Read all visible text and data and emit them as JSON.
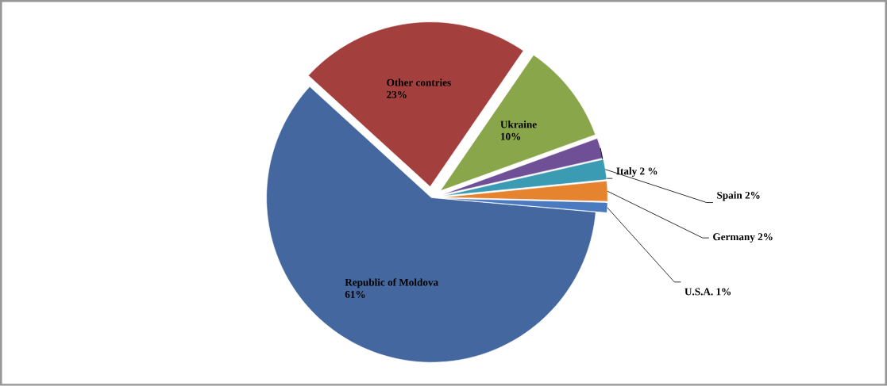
{
  "chart_data": {
    "type": "pie",
    "categories": [
      "Republic of Moldova",
      "Other contries",
      "Ukraine",
      "Italy",
      "Spain",
      "Germany",
      "U.S.A."
    ],
    "values": [
      61,
      23,
      10,
      2,
      2,
      2,
      1
    ],
    "value_labels": [
      "61%",
      "23%",
      "10%",
      "2 %",
      "2%",
      "2%",
      "1%"
    ],
    "colors": [
      "#43679e",
      "#a3403d",
      "#8aa64a",
      "#6f4f96",
      "#3a9bb3",
      "#e5832e",
      "#4a7ac0"
    ]
  }
}
